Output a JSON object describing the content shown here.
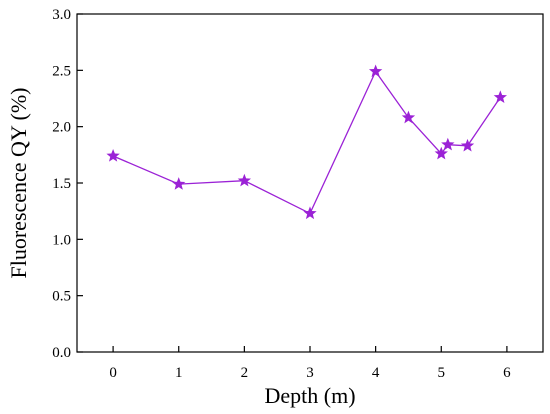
{
  "chart_data": {
    "type": "line",
    "title": "",
    "xlabel": "Depth (m)",
    "ylabel": "Fluorescence QY (%)",
    "xlim": [
      -0.55,
      6.55
    ],
    "ylim": [
      0.0,
      3.0
    ],
    "x_ticks": [
      0,
      1,
      2,
      3,
      4,
      5,
      6
    ],
    "y_ticks": [
      0.0,
      0.5,
      1.0,
      1.5,
      2.0,
      2.5,
      3.0
    ],
    "grid": false,
    "legend": "none",
    "series": [
      {
        "marker": "star",
        "color": "#9b22d6",
        "x": [
          0,
          1,
          2,
          3,
          4,
          4.5,
          5,
          5.1,
          5.4,
          5.9
        ],
        "y": [
          1.74,
          1.49,
          1.52,
          1.23,
          2.49,
          2.08,
          1.76,
          1.84,
          1.83,
          2.26
        ]
      }
    ]
  }
}
